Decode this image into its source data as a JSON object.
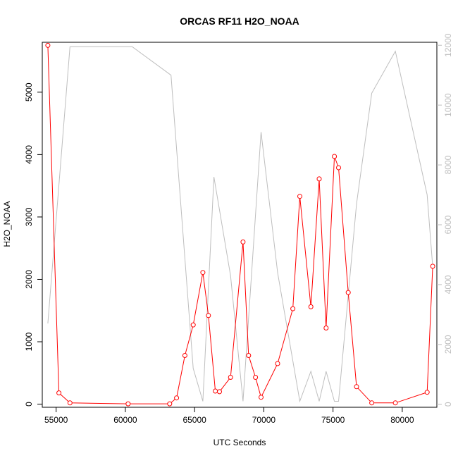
{
  "chart_data": {
    "type": "line",
    "title": "ORCAS RF11 H2O_NOAA",
    "xlabel": "UTC Seconds",
    "ylabel": "H2O_NOAA",
    "xlim": [
      54000,
      82500
    ],
    "ylim": [
      -50,
      5800
    ],
    "y2lim": [
      -100,
      12100
    ],
    "x_ticks": [
      55000,
      60000,
      65000,
      70000,
      75000,
      80000
    ],
    "y_ticks": [
      0,
      1000,
      2000,
      3000,
      4000,
      5000
    ],
    "y2_ticks": [
      0,
      2000,
      4000,
      6000,
      8000,
      10000,
      12000
    ],
    "x_tick_labels": [
      "55000",
      "60000",
      "65000",
      "70000",
      "75000",
      "80000"
    ],
    "y_tick_labels": [
      "0",
      "1000",
      "2000",
      "3000",
      "4000",
      "5000"
    ],
    "y2_tick_labels": [
      "0",
      "2000",
      "4000",
      "6000",
      "8000",
      "10000",
      "12000"
    ],
    "colors": {
      "primary": "#ff0000",
      "secondary": "#bebebe",
      "axis": "#000000"
    },
    "series": [
      {
        "axis": "left",
        "color": "#ff0000",
        "markers": "open-circle",
        "x": [
          54400,
          55200,
          56000,
          60200,
          63200,
          63700,
          64300,
          64900,
          65600,
          66000,
          66500,
          66800,
          67600,
          68500,
          68900,
          69400,
          69800,
          71000,
          72100,
          72600,
          73400,
          74000,
          74500,
          75100,
          75400,
          76100,
          76700,
          77800,
          79500,
          81800,
          82200
        ],
        "y": [
          5750,
          180,
          20,
          5,
          5,
          100,
          780,
          1270,
          2110,
          1420,
          210,
          200,
          430,
          2600,
          780,
          430,
          110,
          650,
          1530,
          3330,
          1560,
          3610,
          1220,
          3970,
          3790,
          1790,
          280,
          20,
          20,
          190,
          2210
        ]
      },
      {
        "axis": "right",
        "color": "#bebebe",
        "markers": "none",
        "x": [
          54400,
          56000,
          60500,
          63300,
          64900,
          65600,
          66400,
          67600,
          68500,
          69800,
          71000,
          72600,
          73400,
          74000,
          74500,
          75100,
          75400,
          76700,
          77800,
          79500,
          81800,
          82200
        ],
        "y": [
          2700,
          11950,
          11950,
          11000,
          1200,
          100,
          7600,
          4300,
          100,
          9100,
          4400,
          100,
          1100,
          100,
          1100,
          100,
          100,
          6700,
          10400,
          11800,
          7000,
          4600
        ]
      }
    ]
  }
}
